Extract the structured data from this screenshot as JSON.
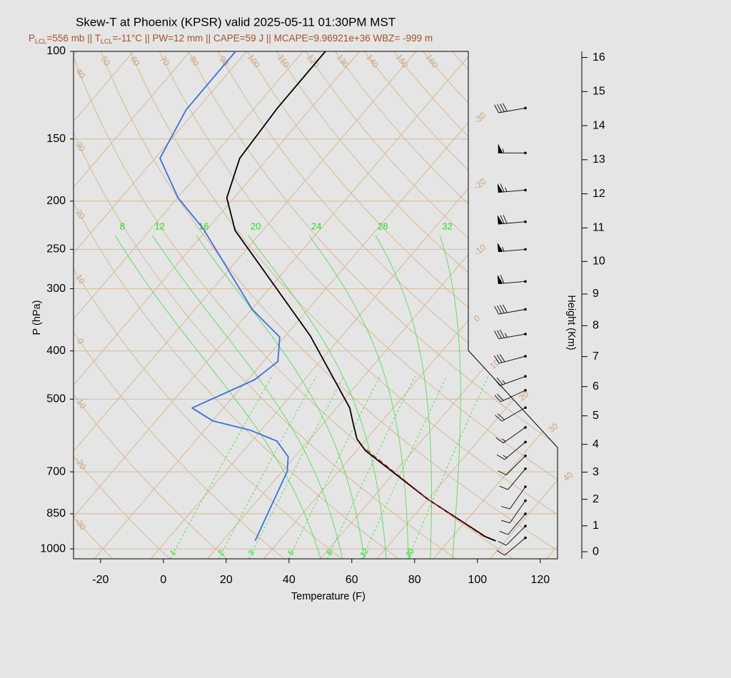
{
  "chart_data": {
    "type": "skew-t",
    "title": "Skew-T at Phoenix (KPSR) valid 2025-05-11 01:30PM MST",
    "subtitle": [
      "P",
      "LCL",
      "=556 mb || T",
      "LCL",
      "=-11°C || PW=12 mm || CAPE=59 J || MCAPE=9.96921e+36 WBZ= -999 m"
    ],
    "xlabel": "Temperature (F)",
    "ylabel": "P (hPa)",
    "y2label": "Height (Km)",
    "xlim": [
      -28.6,
      125.5
    ],
    "xticks": [
      -20,
      0,
      20,
      40,
      60,
      80,
      100,
      120
    ],
    "ylim": [
      100,
      1047
    ],
    "y_scale": "log",
    "yticks": [
      100,
      150,
      200,
      250,
      300,
      400,
      500,
      700,
      850,
      1000
    ],
    "y2ticks": [
      0,
      1,
      2,
      3,
      4,
      5,
      6,
      7,
      8,
      9,
      10,
      11,
      12,
      13,
      14,
      15,
      16
    ],
    "isotherms_c": [
      -110,
      -100,
      -90,
      -80,
      -70,
      -60,
      -50,
      -40,
      -30,
      -20,
      -10,
      0,
      10,
      20,
      30,
      40,
      50
    ],
    "dry_adiabats_c": [
      -30,
      -20,
      -10,
      0,
      10,
      20,
      30,
      40,
      50,
      60,
      70,
      80,
      90,
      100,
      110,
      120,
      130,
      140,
      150,
      160,
      170,
      180
    ],
    "moist_adiabats_c": [
      8,
      12,
      16,
      20,
      24,
      28,
      32
    ],
    "mixing_ratio_gkg": [
      1,
      2,
      3,
      5,
      8,
      12,
      20
    ],
    "temperature": {
      "color": "#000000",
      "pressure": [
        964,
        945,
        796,
        635,
        601,
        553,
        521,
        373,
        229,
        197,
        164,
        130,
        100
      ],
      "values": [
        101.0,
        96.5,
        68.2,
        34.9,
        28.9,
        22.6,
        18.2,
        -14.1,
        -66.8,
        -78.3,
        -85.0,
        -86.7,
        -86.9
      ]
    },
    "dewpoint": {
      "color": "#3c6fe0",
      "pressure": [
        963,
        699,
        653,
        607,
        577,
        553,
        521,
        457,
        420,
        375,
        330,
        227,
        197,
        164,
        131,
        100
      ],
      "values": [
        24.3,
        15.6,
        11.9,
        4.0,
        -7.6,
        -21.9,
        -32.0,
        -19.8,
        -17.4,
        -23.5,
        -39.8,
        -77.5,
        -93.8,
        -110.4,
        -115.3,
        -115.5
      ]
    },
    "parcel": {
      "color": "#e02020",
      "pressure": [
        945,
        802,
        629
      ],
      "values": [
        96.0,
        69.4,
        34.3
      ]
    },
    "winds": {
      "pressure": [
        130,
        160,
        190,
        220,
        250,
        290,
        330,
        370,
        410,
        450,
        480,
        520,
        570,
        610,
        650,
        690,
        750,
        800,
        850,
        900,
        950
      ],
      "direction": [
        260,
        270,
        265,
        265,
        265,
        265,
        260,
        260,
        255,
        250,
        245,
        240,
        235,
        230,
        225,
        220,
        215,
        215,
        220,
        225,
        230
      ],
      "speed": [
        40,
        55,
        65,
        70,
        55,
        60,
        40,
        35,
        30,
        25,
        20,
        20,
        15,
        15,
        10,
        10,
        10,
        10,
        10,
        10,
        10
      ]
    }
  }
}
